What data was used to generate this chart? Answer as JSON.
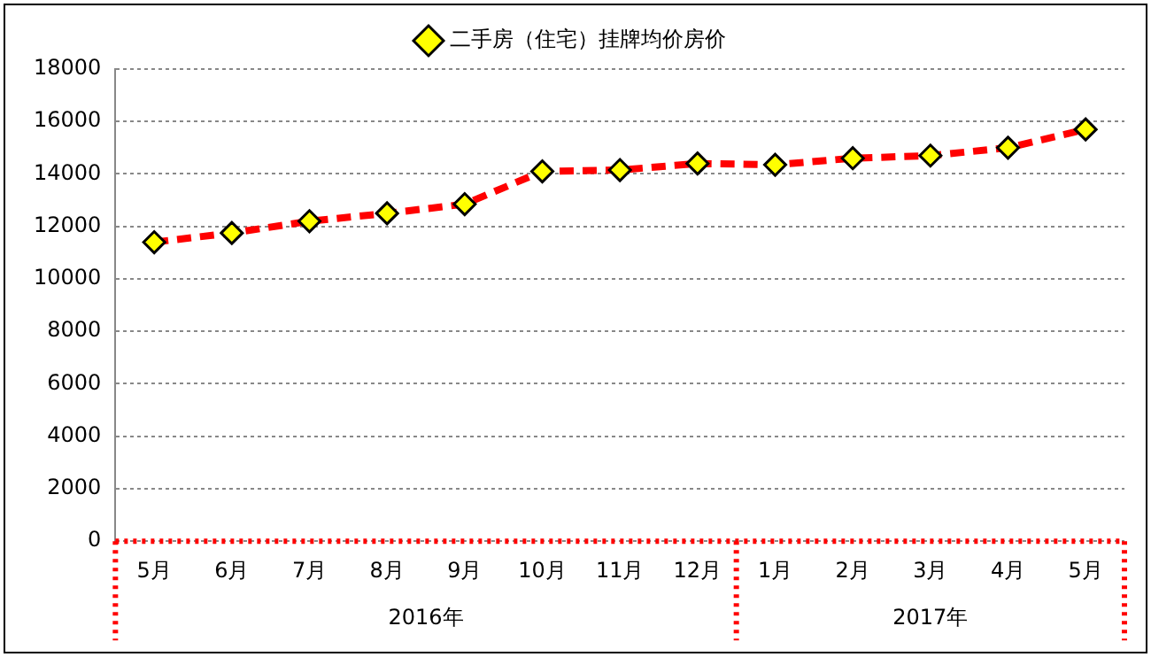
{
  "chart_data": {
    "type": "line",
    "categories": [
      "5月",
      "6月",
      "7月",
      "8月",
      "9月",
      "10月",
      "11月",
      "12月",
      "1月",
      "2月",
      "3月",
      "4月",
      "5月"
    ],
    "series": [
      {
        "name": "二手房（住宅）挂牌均价房价",
        "color": "#ff0000",
        "values": [
          11400,
          11750,
          12200,
          12500,
          12850,
          14100,
          14150,
          14400,
          14350,
          14600,
          14700,
          15000,
          15700
        ]
      }
    ],
    "ylim": [
      0,
      18000
    ],
    "yticks": [
      0,
      2000,
      4000,
      6000,
      8000,
      10000,
      12000,
      14000,
      16000,
      18000
    ],
    "grid": "y",
    "legend": "top",
    "marker": "diamond",
    "line_style": "dashed",
    "annotations": [
      "2016年",
      "2017年"
    ]
  }
}
